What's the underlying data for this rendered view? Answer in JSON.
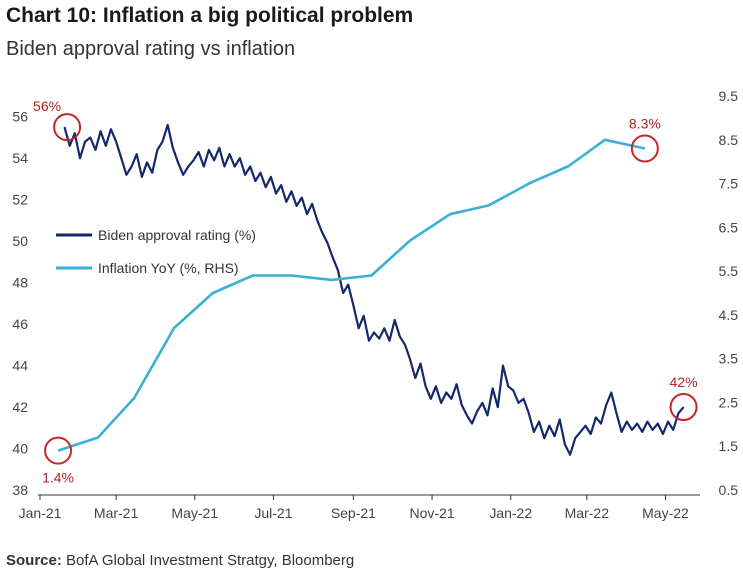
{
  "chart_data": {
    "type": "line",
    "title": "Chart 10: Inflation a big political problem",
    "subtitle": "Biden approval rating vs inflation",
    "source_label": "Source:",
    "source_text": "BofA Global Investment Stratgy, Bloomberg",
    "x_ticks": [
      "Jan-21",
      "Mar-21",
      "May-21",
      "Jul-21",
      "Sep-21",
      "Nov-21",
      "Jan-22",
      "Mar-22",
      "May-22"
    ],
    "x_range": [
      "2021-01-01",
      "2022-05-20"
    ],
    "left_axis": {
      "ticks": [
        "38",
        "40",
        "42",
        "44",
        "46",
        "48",
        "50",
        "52",
        "54",
        "56"
      ],
      "ylim": [
        38,
        57
      ]
    },
    "right_axis": {
      "ticks": [
        "0.5",
        "1.5",
        "2.5",
        "3.5",
        "4.5",
        "5.5",
        "6.5",
        "7.5",
        "8.5",
        "9.5"
      ],
      "ylim": [
        0.5,
        9.5
      ]
    },
    "grid": false,
    "legend_position": "center-left",
    "colors": {
      "approval": "#14286b",
      "inflation": "#3ab0d9",
      "annotation": "#c62828"
    },
    "series": [
      {
        "name": "Biden approval rating (%)",
        "axis": "left",
        "points": [
          [
            "2021-01-20",
            55.5
          ],
          [
            "2021-01-24",
            54.6
          ],
          [
            "2021-01-28",
            55.2
          ],
          [
            "2021-02-01",
            54.0
          ],
          [
            "2021-02-05",
            54.8
          ],
          [
            "2021-02-09",
            55.0
          ],
          [
            "2021-02-13",
            54.4
          ],
          [
            "2021-02-17",
            55.3
          ],
          [
            "2021-02-21",
            54.6
          ],
          [
            "2021-02-25",
            55.4
          ],
          [
            "2021-03-01",
            54.8
          ],
          [
            "2021-03-05",
            54.0
          ],
          [
            "2021-03-09",
            53.2
          ],
          [
            "2021-03-13",
            53.6
          ],
          [
            "2021-03-17",
            54.2
          ],
          [
            "2021-03-21",
            53.1
          ],
          [
            "2021-03-25",
            53.8
          ],
          [
            "2021-03-29",
            53.3
          ],
          [
            "2021-04-02",
            54.4
          ],
          [
            "2021-04-06",
            54.8
          ],
          [
            "2021-04-10",
            55.6
          ],
          [
            "2021-04-14",
            54.5
          ],
          [
            "2021-04-18",
            53.8
          ],
          [
            "2021-04-22",
            53.2
          ],
          [
            "2021-04-26",
            53.6
          ],
          [
            "2021-04-30",
            53.9
          ],
          [
            "2021-05-04",
            54.3
          ],
          [
            "2021-05-08",
            53.6
          ],
          [
            "2021-05-12",
            54.4
          ],
          [
            "2021-05-16",
            53.9
          ],
          [
            "2021-05-20",
            54.5
          ],
          [
            "2021-05-24",
            53.6
          ],
          [
            "2021-05-28",
            54.2
          ],
          [
            "2021-06-01",
            53.6
          ],
          [
            "2021-06-05",
            54.0
          ],
          [
            "2021-06-09",
            53.2
          ],
          [
            "2021-06-13",
            53.6
          ],
          [
            "2021-06-17",
            52.9
          ],
          [
            "2021-06-21",
            53.3
          ],
          [
            "2021-06-25",
            52.6
          ],
          [
            "2021-06-29",
            53.1
          ],
          [
            "2021-07-03",
            52.3
          ],
          [
            "2021-07-07",
            52.7
          ],
          [
            "2021-07-11",
            51.9
          ],
          [
            "2021-07-15",
            52.4
          ],
          [
            "2021-07-19",
            51.7
          ],
          [
            "2021-07-23",
            52.1
          ],
          [
            "2021-07-27",
            51.3
          ],
          [
            "2021-07-31",
            51.8
          ],
          [
            "2021-08-04",
            51.0
          ],
          [
            "2021-08-08",
            50.4
          ],
          [
            "2021-08-12",
            49.9
          ],
          [
            "2021-08-16",
            49.2
          ],
          [
            "2021-08-20",
            48.6
          ],
          [
            "2021-08-24",
            47.5
          ],
          [
            "2021-08-28",
            47.9
          ],
          [
            "2021-09-01",
            46.9
          ],
          [
            "2021-09-05",
            45.8
          ],
          [
            "2021-09-09",
            46.4
          ],
          [
            "2021-09-13",
            45.2
          ],
          [
            "2021-09-17",
            45.6
          ],
          [
            "2021-09-21",
            45.3
          ],
          [
            "2021-09-25",
            45.8
          ],
          [
            "2021-09-29",
            45.2
          ],
          [
            "2021-10-03",
            46.2
          ],
          [
            "2021-10-07",
            45.4
          ],
          [
            "2021-10-11",
            45.0
          ],
          [
            "2021-10-15",
            44.3
          ],
          [
            "2021-10-19",
            43.4
          ],
          [
            "2021-10-23",
            44.1
          ],
          [
            "2021-10-27",
            43.0
          ],
          [
            "2021-10-31",
            42.4
          ],
          [
            "2021-11-04",
            43.0
          ],
          [
            "2021-11-08",
            42.2
          ],
          [
            "2021-11-12",
            42.7
          ],
          [
            "2021-11-16",
            42.4
          ],
          [
            "2021-11-20",
            43.1
          ],
          [
            "2021-11-24",
            42.1
          ],
          [
            "2021-11-28",
            41.6
          ],
          [
            "2021-12-02",
            41.2
          ],
          [
            "2021-12-06",
            41.8
          ],
          [
            "2021-12-10",
            42.2
          ],
          [
            "2021-12-14",
            41.6
          ],
          [
            "2021-12-18",
            42.9
          ],
          [
            "2021-12-22",
            42.0
          ],
          [
            "2021-12-26",
            44.0
          ],
          [
            "2021-12-30",
            43.0
          ],
          [
            "2022-01-03",
            42.8
          ],
          [
            "2022-01-07",
            42.2
          ],
          [
            "2022-01-11",
            42.4
          ],
          [
            "2022-01-15",
            41.7
          ],
          [
            "2022-01-19",
            40.8
          ],
          [
            "2022-01-23",
            41.3
          ],
          [
            "2022-01-27",
            40.5
          ],
          [
            "2022-01-31",
            41.1
          ],
          [
            "2022-02-04",
            40.6
          ],
          [
            "2022-02-08",
            41.4
          ],
          [
            "2022-02-12",
            40.2
          ],
          [
            "2022-02-16",
            39.7
          ],
          [
            "2022-02-20",
            40.5
          ],
          [
            "2022-02-24",
            40.8
          ],
          [
            "2022-02-28",
            41.1
          ],
          [
            "2022-03-04",
            40.7
          ],
          [
            "2022-03-08",
            41.5
          ],
          [
            "2022-03-12",
            41.2
          ],
          [
            "2022-03-16",
            42.1
          ],
          [
            "2022-03-20",
            42.7
          ],
          [
            "2022-03-24",
            41.7
          ],
          [
            "2022-03-28",
            40.8
          ],
          [
            "2022-04-01",
            41.3
          ],
          [
            "2022-04-05",
            40.9
          ],
          [
            "2022-04-09",
            41.2
          ],
          [
            "2022-04-13",
            40.8
          ],
          [
            "2022-04-17",
            41.3
          ],
          [
            "2022-04-21",
            40.9
          ],
          [
            "2022-04-25",
            41.2
          ],
          [
            "2022-04-29",
            40.7
          ],
          [
            "2022-05-03",
            41.3
          ],
          [
            "2022-05-07",
            40.9
          ],
          [
            "2022-05-11",
            41.7
          ],
          [
            "2022-05-15",
            42.0
          ]
        ]
      },
      {
        "name": "Inflation YoY (%, RHS)",
        "axis": "right",
        "points": [
          [
            "2021-01-15",
            1.4
          ],
          [
            "2021-02-15",
            1.7
          ],
          [
            "2021-03-15",
            2.6
          ],
          [
            "2021-04-15",
            4.2
          ],
          [
            "2021-05-15",
            5.0
          ],
          [
            "2021-06-15",
            5.4
          ],
          [
            "2021-07-15",
            5.4
          ],
          [
            "2021-08-15",
            5.3
          ],
          [
            "2021-09-15",
            5.4
          ],
          [
            "2021-10-15",
            6.2
          ],
          [
            "2021-11-15",
            6.8
          ],
          [
            "2021-12-15",
            7.0
          ],
          [
            "2022-01-15",
            7.5
          ],
          [
            "2022-02-15",
            7.9
          ],
          [
            "2022-03-15",
            8.5
          ],
          [
            "2022-04-15",
            8.3
          ]
        ]
      }
    ],
    "annotations": [
      {
        "text": "56%",
        "series": 0,
        "x": "2021-01-22",
        "y": 55.5,
        "label_side": "left"
      },
      {
        "text": "42%",
        "series": 0,
        "x": "2022-05-15",
        "y": 42.0,
        "label_side": "above"
      },
      {
        "text": "1.4%",
        "series": 1,
        "x": "2021-01-15",
        "y": 1.4,
        "label_side": "below"
      },
      {
        "text": "8.3%",
        "series": 1,
        "x": "2022-04-15",
        "y": 8.3,
        "label_side": "above"
      }
    ]
  }
}
